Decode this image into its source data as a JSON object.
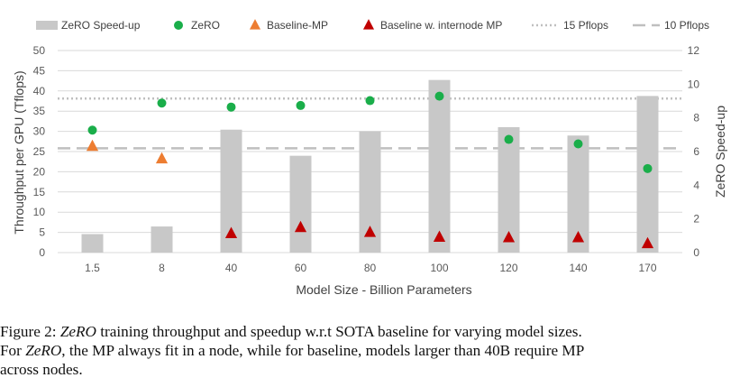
{
  "chart_data": {
    "type": "bar",
    "categories": [
      "1.5",
      "8",
      "40",
      "60",
      "80",
      "100",
      "120",
      "140",
      "170"
    ],
    "xlabel": "Model Size - Billion Parameters",
    "ylabel": "Throughput per GPU (Tflops)",
    "y2label": "ZeRO Speed-up",
    "ylim": [
      0,
      50
    ],
    "y2lim": [
      0,
      12
    ],
    "yticks": [
      0,
      5,
      10,
      15,
      20,
      25,
      30,
      35,
      40,
      45,
      50
    ],
    "y2ticks": [
      0,
      2,
      4,
      6,
      8,
      10,
      12
    ],
    "legend_position": "top",
    "series": [
      {
        "name": "ZeRO Speed-up",
        "type": "bar",
        "axis": "right",
        "color": "#c8c8c8",
        "values": [
          1.1,
          1.55,
          7.3,
          5.75,
          7.2,
          10.25,
          7.45,
          6.95,
          9.3
        ]
      },
      {
        "name": "ZeRO",
        "type": "point",
        "marker": "circle",
        "axis": "left",
        "color": "#1aae4a",
        "values": [
          30.3,
          37.0,
          36.0,
          36.4,
          37.6,
          38.7,
          28.0,
          26.9,
          20.8
        ]
      },
      {
        "name": "Baseline-MP",
        "type": "point",
        "marker": "triangle",
        "axis": "left",
        "color": "#ed7d31",
        "values": [
          26.3,
          23.2,
          null,
          null,
          null,
          null,
          null,
          null,
          null
        ]
      },
      {
        "name": "Baseline w. internode MP",
        "type": "point",
        "marker": "triangle",
        "axis": "left",
        "color": "#c00000",
        "values": [
          null,
          null,
          4.7,
          6.2,
          5.0,
          3.8,
          3.7,
          3.7,
          2.2
        ]
      }
    ],
    "reference_lines": [
      {
        "name": "15 Pflops",
        "value": 38.1,
        "style": "dotted",
        "color": "#bfbfbf"
      },
      {
        "name": "10 Pflops",
        "value": 25.8,
        "style": "dashed",
        "color": "#bfbfbf"
      }
    ]
  },
  "caption": {
    "label": "Figure 2:",
    "lines": [
      [
        {
          "t": " "
        },
        {
          "t": "ZeRO",
          "i": true
        },
        {
          "t": " training throughput and speedup w.r.t SOTA baseline for varying model sizes."
        }
      ],
      [
        {
          "t": "For "
        },
        {
          "t": "ZeRO",
          "i": true
        },
        {
          "t": ", the MP always fit in a node, while for baseline, models larger than 40B require MP"
        }
      ],
      [
        {
          "t": "across nodes."
        }
      ]
    ]
  }
}
